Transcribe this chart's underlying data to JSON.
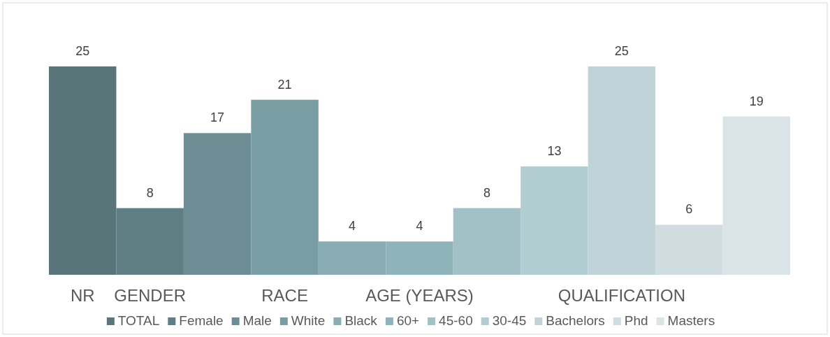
{
  "chart_data": {
    "type": "bar",
    "categories": [
      "NR",
      "GENDER",
      null,
      "RACE",
      null,
      "AGE (YEARS)",
      null,
      null,
      "QUALIFICATION",
      null,
      null
    ],
    "series": [
      {
        "name": "TOTAL",
        "color": "#58757a",
        "values": [
          25,
          null,
          null,
          null,
          null,
          null,
          null,
          null,
          null,
          null,
          null
        ]
      },
      {
        "name": "Female",
        "color": "#5f7f84",
        "values": [
          null,
          8,
          null,
          null,
          null,
          null,
          null,
          null,
          null,
          null,
          null
        ]
      },
      {
        "name": "Male",
        "color": "#6b8d93",
        "values": [
          null,
          null,
          17,
          null,
          null,
          null,
          null,
          null,
          null,
          null,
          null
        ]
      },
      {
        "name": "White",
        "color": "#789ea4",
        "values": [
          null,
          null,
          null,
          21,
          null,
          null,
          null,
          null,
          null,
          null,
          null
        ]
      },
      {
        "name": "Black",
        "color": "#88acb2",
        "values": [
          null,
          null,
          null,
          null,
          4,
          null,
          null,
          null,
          null,
          null,
          null
        ]
      },
      {
        "name": "60+",
        "color": "#8fb3ba",
        "values": [
          null,
          null,
          null,
          null,
          null,
          4,
          null,
          null,
          null,
          null,
          null
        ]
      },
      {
        "name": "45-60",
        "color": "#a2c1c7",
        "values": [
          null,
          null,
          null,
          null,
          null,
          null,
          8,
          null,
          null,
          null,
          null
        ]
      },
      {
        "name": "30-45",
        "color": "#b2cdd2",
        "values": [
          null,
          null,
          null,
          null,
          null,
          null,
          null,
          13,
          null,
          null,
          null
        ]
      },
      {
        "name": "Bachelors",
        "color": "#c0d3d9",
        "values": [
          null,
          null,
          null,
          null,
          null,
          null,
          null,
          null,
          25,
          null,
          null
        ]
      },
      {
        "name": "Phd",
        "color": "#cfdde1",
        "values": [
          null,
          null,
          null,
          null,
          null,
          null,
          null,
          null,
          null,
          6,
          null
        ]
      },
      {
        "name": "Masters",
        "color": "#dae4e7",
        "values": [
          null,
          null,
          null,
          null,
          null,
          null,
          null,
          null,
          null,
          null,
          19
        ]
      }
    ],
    "data_labels": true,
    "legend": "bottom"
  }
}
